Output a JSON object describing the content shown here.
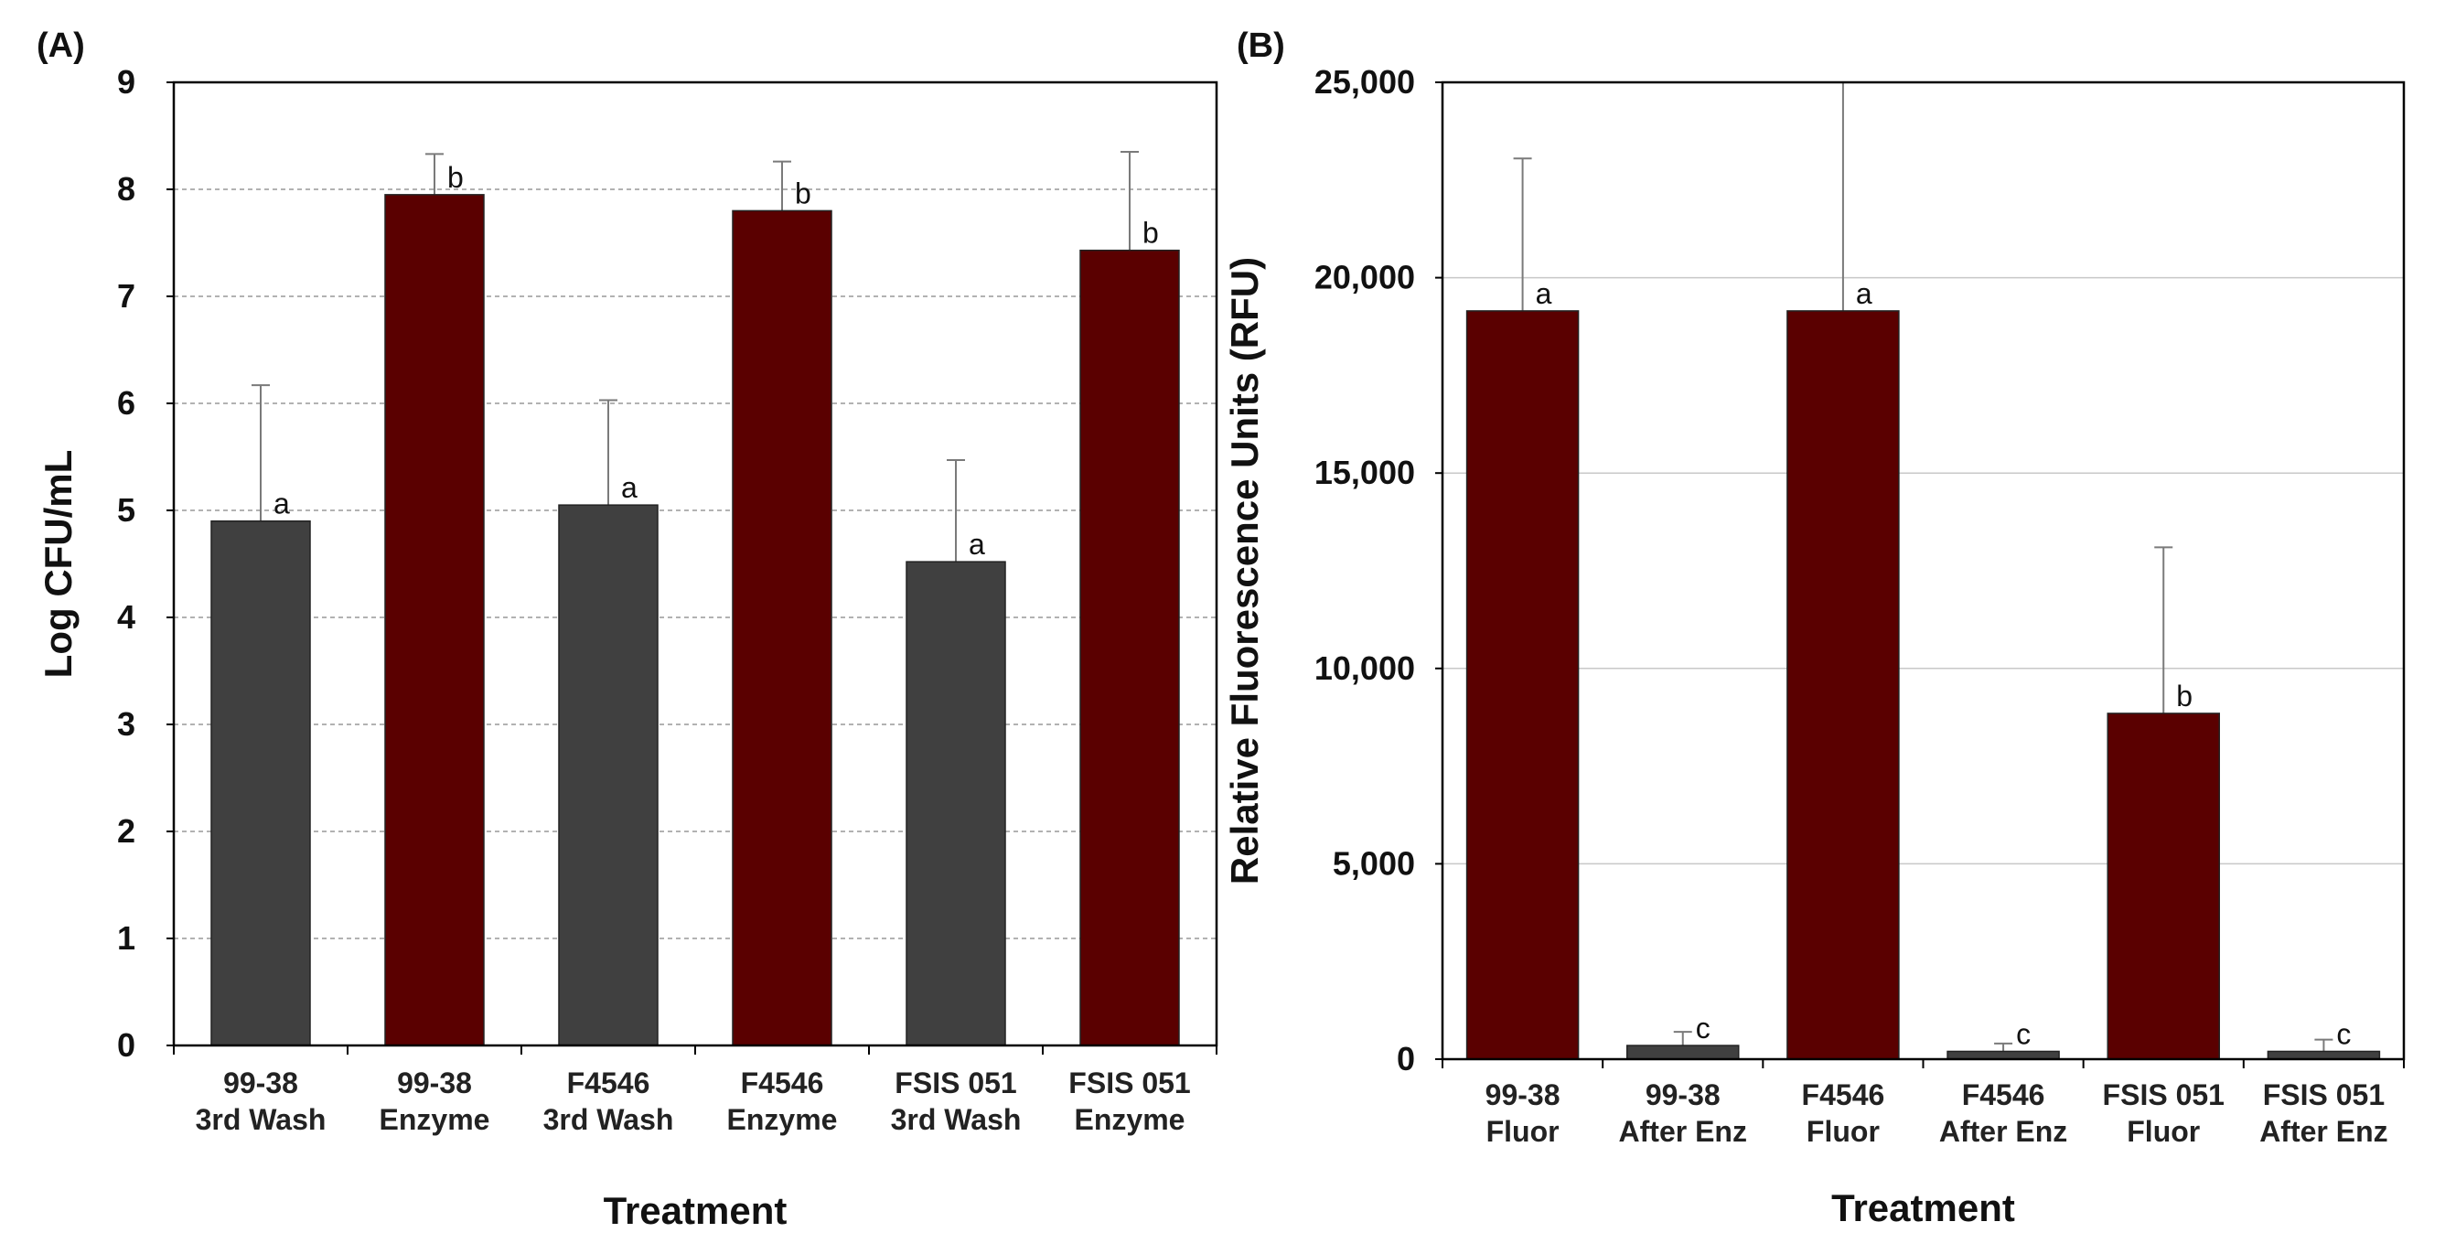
{
  "colors": {
    "wash": "#404040",
    "enzyme": "#5a0000",
    "grid": "#999999",
    "axis": "#000000"
  },
  "chart_data": [
    {
      "type": "bar",
      "panel_label": "(A)",
      "categories": [
        [
          "99-38",
          "3rd Wash"
        ],
        [
          "99-38",
          "Enzyme"
        ],
        [
          "F4546",
          "3rd Wash"
        ],
        [
          "F4546",
          "Enzyme"
        ],
        [
          "FSIS 051",
          "3rd Wash"
        ],
        [
          "FSIS 051",
          "Enzyme"
        ]
      ],
      "values": [
        4.9,
        7.95,
        5.05,
        7.8,
        4.52,
        7.43
      ],
      "errors": [
        1.27,
        0.38,
        0.98,
        0.46,
        0.95,
        0.92
      ],
      "significance": [
        "a",
        "b",
        "a",
        "b",
        "a",
        "b"
      ],
      "bar_colors": [
        "wash",
        "enzyme",
        "wash",
        "enzyme",
        "wash",
        "enzyme"
      ],
      "xlabel": "Treatment",
      "ylabel": "Log CFU/mL",
      "ylim": [
        0,
        9
      ],
      "yticks": [
        0,
        1,
        2,
        3,
        4,
        5,
        6,
        7,
        8,
        9
      ],
      "ytick_labels": [
        "0",
        "1",
        "2",
        "3",
        "4",
        "5",
        "6",
        "7",
        "8",
        "9"
      ],
      "grid": "dashed"
    },
    {
      "type": "bar",
      "panel_label": "(B)",
      "categories": [
        [
          "99-38",
          "Fluor"
        ],
        [
          "99-38",
          "After Enz"
        ],
        [
          "F4546",
          "Fluor"
        ],
        [
          "F4546",
          "After Enz"
        ],
        [
          "FSIS 051",
          "Fluor"
        ],
        [
          "FSIS 051",
          "After Enz"
        ]
      ],
      "values": [
        19150,
        350,
        19150,
        200,
        8850,
        200
      ],
      "errors": [
        3900,
        350,
        5850,
        200,
        4250,
        300
      ],
      "significance": [
        "a",
        "c",
        "a",
        "c",
        "b",
        "c"
      ],
      "bar_colors": [
        "enzyme",
        "wash",
        "enzyme",
        "wash",
        "enzyme",
        "wash"
      ],
      "xlabel": "Treatment",
      "ylabel": "Relative Fluorescence Units (RFU)",
      "ylim": [
        0,
        25000
      ],
      "yticks": [
        0,
        5000,
        10000,
        15000,
        20000,
        25000
      ],
      "ytick_labels": [
        "0",
        "5,000",
        "10,000",
        "15,000",
        "20,000",
        "25,000"
      ],
      "grid": "solid"
    }
  ]
}
